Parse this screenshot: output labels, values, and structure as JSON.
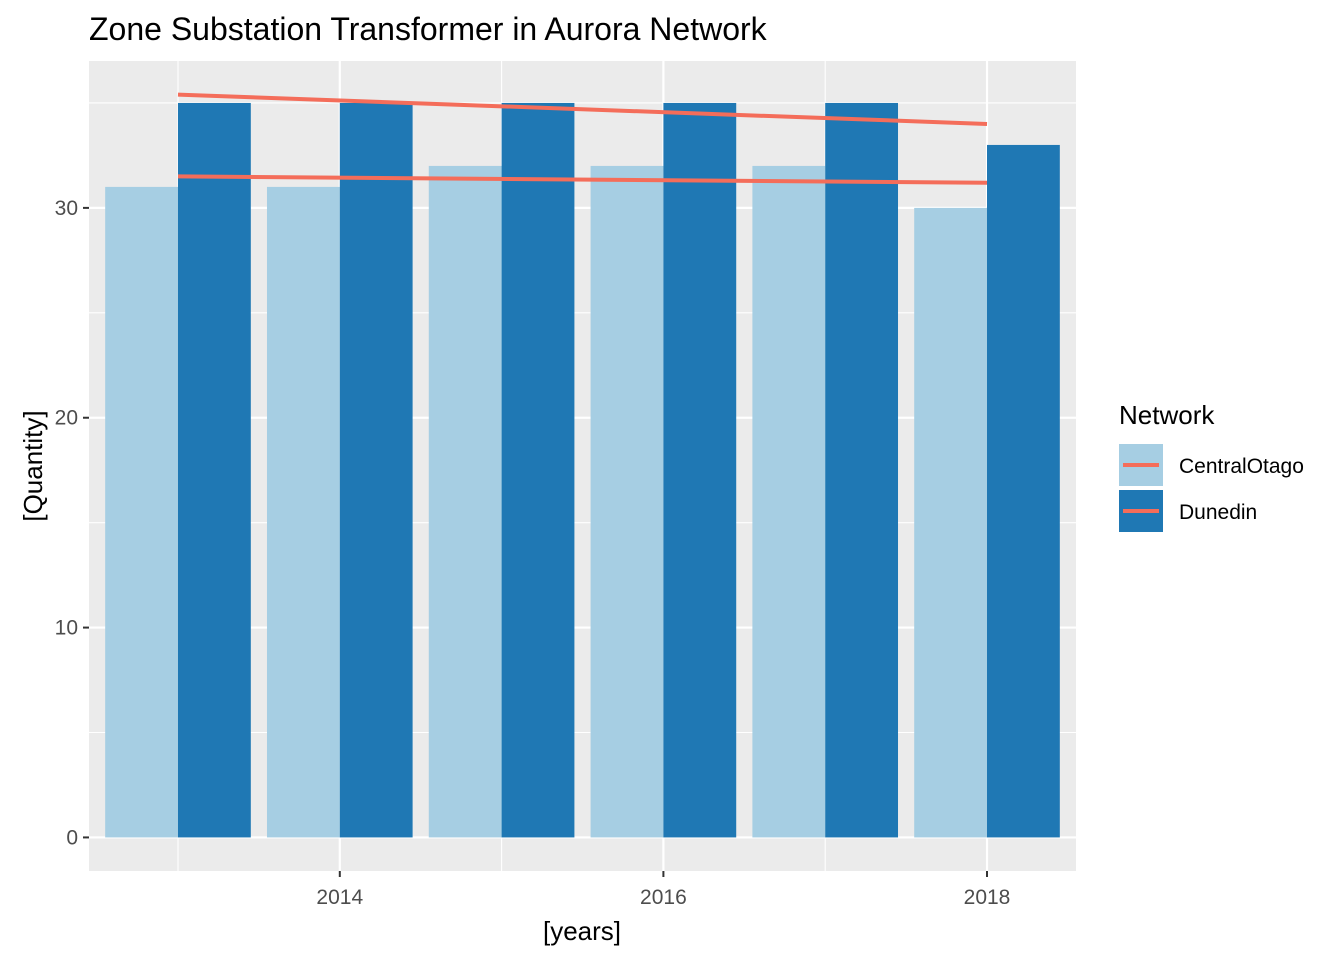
{
  "chart_data": {
    "type": "bar",
    "title": "Zone Substation Transformer in Aurora Network",
    "xlabel": "[years]",
    "ylabel": "[Quantity]",
    "x": [
      2013,
      2014,
      2015,
      2016,
      2017,
      2018
    ],
    "x_ticks": [
      {
        "value": 2014,
        "label": "2014"
      },
      {
        "value": 2016,
        "label": "2016"
      },
      {
        "value": 2018,
        "label": "2018"
      }
    ],
    "y_ticks": [
      {
        "value": 0,
        "label": "0"
      },
      {
        "value": 10,
        "label": "10"
      },
      {
        "value": 20,
        "label": "20"
      },
      {
        "value": 30,
        "label": "30"
      }
    ],
    "xlim": [
      2012.45,
      2018.55
    ],
    "ylim": [
      -1.6,
      37
    ],
    "series": [
      {
        "name": "CentralOtago",
        "color": "#a6cee3",
        "values": [
          31,
          31,
          32,
          32,
          32,
          30
        ],
        "trend": {
          "color": "#f46d5a",
          "x": [
            2013,
            2018
          ],
          "y": [
            31.5,
            31.2
          ]
        }
      },
      {
        "name": "Dunedin",
        "color": "#1f78b4",
        "values": [
          35,
          35,
          35,
          35,
          35,
          33
        ],
        "trend": {
          "color": "#f46d5a",
          "x": [
            2013,
            2018
          ],
          "y": [
            35.4,
            34
          ]
        }
      }
    ],
    "panel_background": "#ebebeb",
    "grid": true,
    "legend": {
      "title": "Network",
      "placement": "right"
    }
  }
}
